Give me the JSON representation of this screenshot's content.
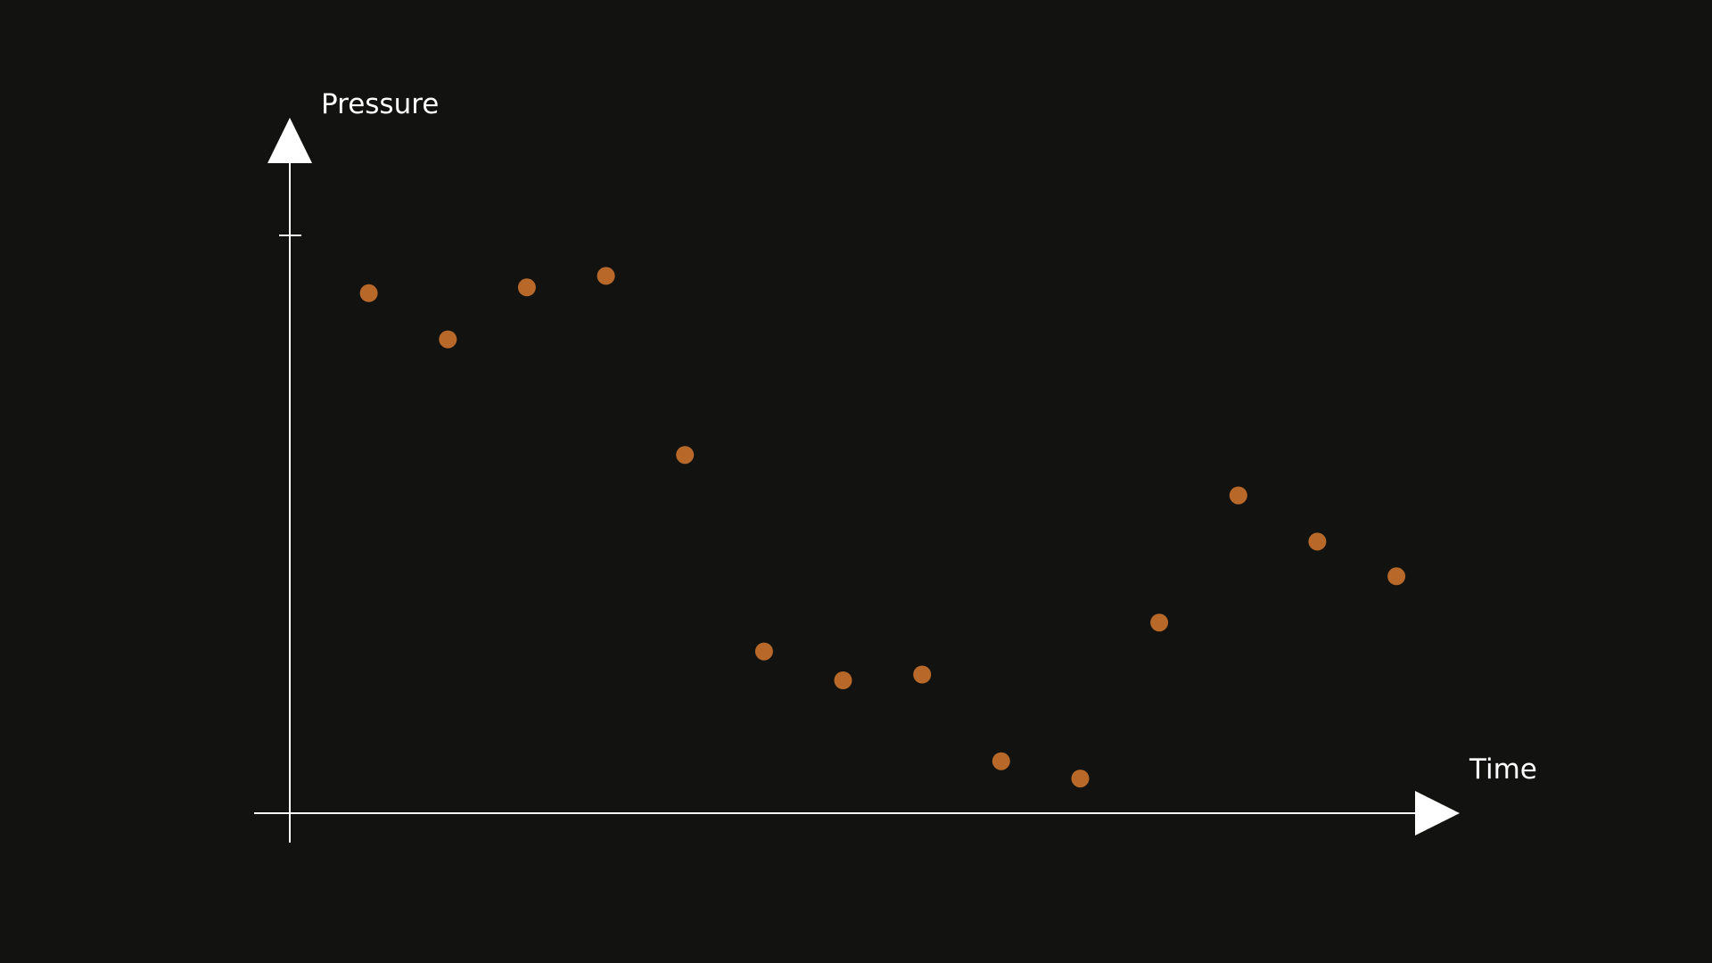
{
  "chart_data": {
    "type": "scatter",
    "title": "",
    "xlabel": "Time",
    "ylabel": "Pressure",
    "xlim": [
      0,
      14.8
    ],
    "ylim": [
      0,
      1
    ],
    "grid": false,
    "legend": "none",
    "x": [
      1,
      2,
      3,
      4,
      5,
      6,
      7,
      8,
      9,
      10,
      11,
      12,
      13,
      14
    ],
    "y": [
      0.9,
      0.82,
      0.91,
      0.93,
      0.62,
      0.28,
      0.23,
      0.24,
      0.09,
      0.06,
      0.33,
      0.55,
      0.47,
      0.41
    ],
    "colors": {
      "background": "#121310",
      "axis": "#ffffff",
      "point": "#b8692a"
    }
  }
}
